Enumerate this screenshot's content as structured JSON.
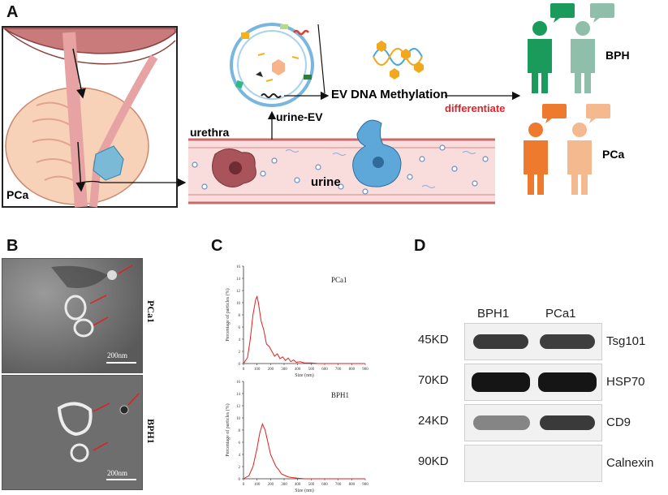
{
  "panels": {
    "a": "A",
    "b": "B",
    "c": "C",
    "d": "D"
  },
  "panel_a": {
    "pca_label": "PCa",
    "urethra_label": "urethra",
    "urine_label": "urine",
    "urine_ev_label": "urine-EV",
    "ev_methylation_label": "EV DNA Methylation",
    "differentiate_label": "differentiate",
    "bph_label": "BPH",
    "pca_group_label": "PCa",
    "colors": {
      "bph_dark": "#1a9b5c",
      "bph_light": "#8fbfaa",
      "pca_dark": "#ee7a2d",
      "pca_light": "#f5b98f",
      "differentiate": "#e8202a"
    }
  },
  "panel_b": {
    "top_label": "PCa1",
    "bottom_label": "BPH1",
    "scale_top": "200nm",
    "scale_bottom": "200nm"
  },
  "panel_d": {
    "col_labels": [
      "BPH1",
      "PCa1"
    ],
    "rows": [
      {
        "kd": "45KD",
        "protein": "Tsg101"
      },
      {
        "kd": "70KD",
        "protein": "HSP70"
      },
      {
        "kd": "24KD",
        "protein": "CD9"
      },
      {
        "kd": "90KD",
        "protein": "Calnexin"
      }
    ]
  },
  "chart_data": [
    {
      "type": "line",
      "title": "PCa1",
      "xlabel": "Size (nm)",
      "ylabel": "Percentage of particles (%)",
      "xlim": [
        0,
        900
      ],
      "ylim": [
        0,
        16
      ],
      "xticks": [
        0,
        100,
        200,
        300,
        400,
        500,
        600,
        700,
        800,
        900
      ],
      "yticks": [
        0,
        2,
        4,
        6,
        8,
        10,
        12,
        14,
        16
      ],
      "series": [
        {
          "x": [
            0,
            30,
            50,
            70,
            90,
            100,
            110,
            130,
            150,
            170,
            190,
            210,
            230,
            250,
            270,
            290,
            310,
            330,
            350,
            370,
            390,
            420,
            450,
            500,
            550,
            600,
            700,
            800,
            900
          ],
          "values": [
            0,
            1,
            4,
            8,
            10.5,
            11,
            10,
            7,
            5.5,
            3.2,
            2.8,
            2.0,
            1.2,
            1.6,
            0.8,
            1.1,
            0.5,
            0.9,
            0.3,
            0.6,
            0.2,
            0.3,
            0.1,
            0.1,
            0,
            0,
            0,
            0,
            0
          ],
          "color": "#e0201e"
        }
      ]
    },
    {
      "type": "line",
      "title": "BPH1",
      "xlabel": "Size (nm)",
      "ylabel": "Percentage of particles (%)",
      "xlim": [
        0,
        900
      ],
      "ylim": [
        0,
        16
      ],
      "xticks": [
        0,
        100,
        200,
        300,
        400,
        500,
        600,
        700,
        800,
        900
      ],
      "yticks": [
        0,
        2,
        4,
        6,
        8,
        10,
        12,
        14,
        16
      ],
      "series": [
        {
          "x": [
            0,
            40,
            70,
            100,
            120,
            140,
            160,
            180,
            200,
            220,
            240,
            260,
            280,
            300,
            330,
            360,
            400,
            450,
            500,
            600,
            700,
            800,
            900
          ],
          "values": [
            0,
            0.5,
            2,
            5,
            7.5,
            9,
            8,
            6,
            4,
            3,
            2,
            1.5,
            0.8,
            0.6,
            0.3,
            0.2,
            0.1,
            0,
            0,
            0,
            0,
            0,
            0
          ],
          "color": "#e0201e"
        }
      ]
    }
  ]
}
